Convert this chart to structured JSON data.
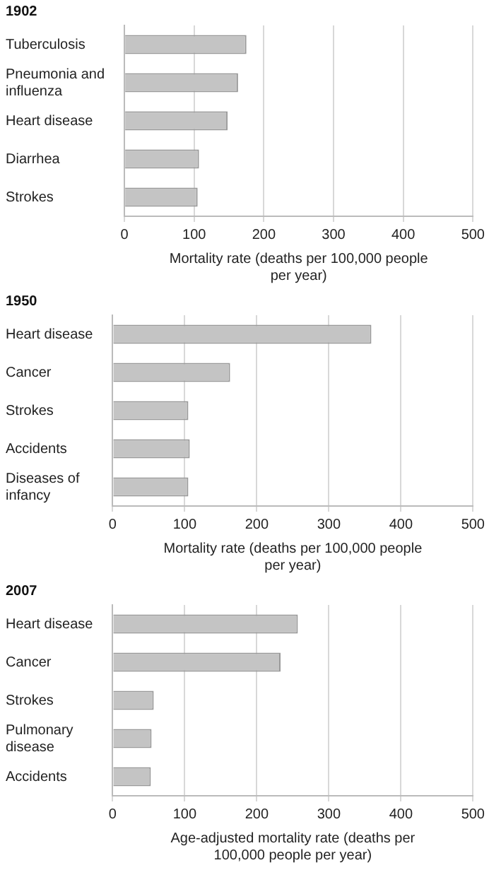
{
  "chart_data": [
    {
      "type": "bar",
      "orientation": "horizontal",
      "title": "1902",
      "categories": [
        "Tuberculosis",
        "Pneumonia and influenza",
        "Heart disease",
        "Diarrhea",
        "Strokes"
      ],
      "values": [
        175,
        163,
        148,
        107,
        105
      ],
      "color": "#c4c4c4",
      "xlim": [
        0,
        500
      ],
      "xticks": [
        0,
        100,
        200,
        300,
        400,
        500
      ],
      "xlabel": "Mortality rate (deaths per 100,000 people per year)",
      "grid": "x"
    },
    {
      "type": "bar",
      "orientation": "horizontal",
      "title": "1950",
      "categories": [
        "Heart disease",
        "Cancer",
        "Strokes",
        "Accidents",
        "Diseases of infancy"
      ],
      "values": [
        359,
        163,
        105,
        107,
        105
      ],
      "color": "#c4c4c4",
      "xlim": [
        0,
        500
      ],
      "xticks": [
        0,
        100,
        200,
        300,
        400,
        500
      ],
      "xlabel": "Mortality rate (deaths per 100,000 people per year)",
      "grid": "x"
    },
    {
      "type": "bar",
      "orientation": "horizontal",
      "title": "2007",
      "categories": [
        "Heart disease",
        "Cancer",
        "Strokes",
        "Pulmonary disease",
        "Accidents"
      ],
      "values": [
        257,
        233,
        57,
        54,
        53
      ],
      "color": "#c4c4c4",
      "xlim": [
        0,
        500
      ],
      "xticks": [
        0,
        100,
        200,
        300,
        400,
        500
      ],
      "xlabel": "Age-adjusted mortality rate (deaths per 100,000 people per year)",
      "grid": "x"
    }
  ]
}
